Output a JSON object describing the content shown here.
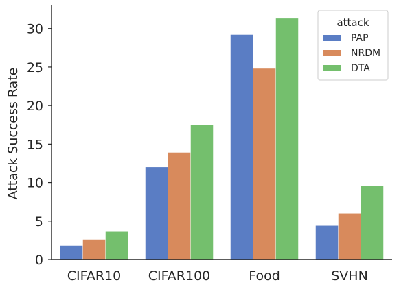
{
  "chart_data": {
    "type": "bar",
    "title": "",
    "xlabel": "",
    "ylabel": "Attack Success Rate",
    "categories": [
      "CIFAR10",
      "CIFAR100",
      "Food",
      "SVHN"
    ],
    "series": [
      {
        "name": "PAP",
        "values": [
          1.8,
          12.0,
          29.2,
          4.4
        ],
        "color": "#5a7dc4"
      },
      {
        "name": "NRDM",
        "values": [
          2.6,
          13.9,
          24.8,
          6.0
        ],
        "color": "#d88a5c"
      },
      {
        "name": "DTA",
        "values": [
          3.6,
          17.5,
          31.3,
          9.6
        ],
        "color": "#74bf6d"
      }
    ],
    "ylim": [
      0,
      33
    ],
    "yticks": [
      0,
      5,
      10,
      15,
      20,
      25,
      30
    ],
    "grid": false,
    "legend": {
      "title": "attack",
      "placement": "top-right"
    }
  }
}
